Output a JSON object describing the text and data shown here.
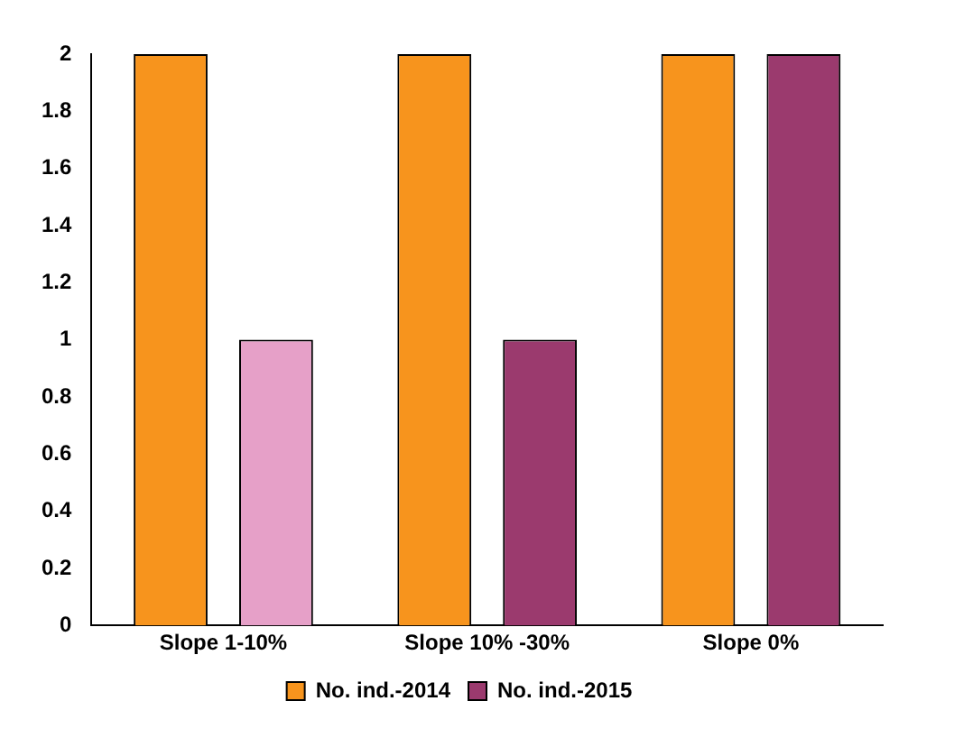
{
  "chart_data": {
    "type": "bar",
    "categories": [
      "Slope 1-10%",
      "Slope 10% -30%",
      "Slope 0%"
    ],
    "series": [
      {
        "name": "No. ind.-2014",
        "color": "#f7941d",
        "values": [
          2,
          2,
          2
        ]
      },
      {
        "name": "No. ind.-2015",
        "color": "#9b3a6e",
        "colors": [
          "#e6a0c8",
          "#9b3a6e",
          "#9b3a6e"
        ],
        "values": [
          1,
          1,
          2
        ]
      }
    ],
    "ylim": [
      0,
      2
    ],
    "yticks": [
      0,
      0.2,
      0.4,
      0.6,
      0.8,
      1,
      1.2,
      1.4,
      1.6,
      1.8,
      2
    ],
    "grid": false,
    "legend": "bottom"
  }
}
